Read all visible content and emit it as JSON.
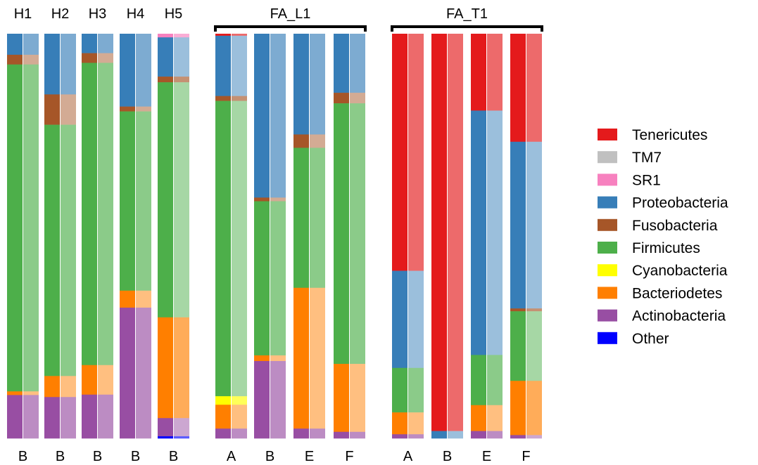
{
  "chart_data": {
    "type": "bar",
    "stacked": true,
    "normalized": true,
    "groups": [
      {
        "title": "",
        "samples": [
          {
            "top_label": "H1",
            "bottom_label": "B",
            "phyla": {
              "Proteobacteria": 5.2,
              "Fusobacteria": 2.4,
              "Firmicutes": 80.8,
              "Bacteriodetes": 0.9,
              "Actinobacteria": 10.7
            }
          },
          {
            "top_label": "H2",
            "bottom_label": "B",
            "phyla": {
              "Proteobacteria": 15.0,
              "Fusobacteria": 7.5,
              "Firmicutes": 62.1,
              "Bacteriodetes": 5.2,
              "Actinobacteria": 10.2
            }
          },
          {
            "top_label": "H3",
            "bottom_label": "B",
            "phyla": {
              "Proteobacteria": 4.8,
              "Fusobacteria": 2.4,
              "Firmicutes": 74.7,
              "Bacteriodetes": 7.3,
              "Actinobacteria": 10.8
            }
          },
          {
            "top_label": "H4",
            "bottom_label": "B",
            "phyla": {
              "Proteobacteria": 18.0,
              "Fusobacteria": 1.2,
              "Firmicutes": 44.3,
              "Bacteriodetes": 4.2,
              "Actinobacteria": 32.3
            }
          },
          {
            "top_label": "H5",
            "bottom_label": "B",
            "phyla": {
              "SR1": 0.9,
              "Proteobacteria": 9.7,
              "Fusobacteria": 1.4,
              "Firmicutes": 58.1,
              "Bacteriodetes": 24.9,
              "Actinobacteria": 4.5,
              "Other": 0.5
            }
          }
        ]
      },
      {
        "title": "FA_L1",
        "samples": [
          {
            "top_label": "",
            "bottom_label": "A",
            "phyla": {
              "Tenericutes": 0.5,
              "Proteobacteria": 14.9,
              "Fusobacteria": 1.2,
              "Firmicutes": 73.0,
              "Cyanobacteria": 2.1,
              "Bacteriodetes": 5.9,
              "Actinobacteria": 2.4
            }
          },
          {
            "top_label": "",
            "bottom_label": "B",
            "phyla": {
              "Proteobacteria": 40.5,
              "Fusobacteria": 0.9,
              "Firmicutes": 38.1,
              "Bacteriodetes": 1.4,
              "Actinobacteria": 19.1
            }
          },
          {
            "top_label": "",
            "bottom_label": "E",
            "phyla": {
              "Proteobacteria": 24.9,
              "Fusobacteria": 3.3,
              "Firmicutes": 34.6,
              "Bacteriodetes": 34.8,
              "Actinobacteria": 2.4
            }
          },
          {
            "top_label": "",
            "bottom_label": "F",
            "phyla": {
              "Proteobacteria": 14.6,
              "Fusobacteria": 2.6,
              "Firmicutes": 64.4,
              "Bacteriodetes": 16.8,
              "Actinobacteria": 1.6
            }
          }
        ]
      },
      {
        "title": "FA_T1",
        "samples": [
          {
            "top_label": "",
            "bottom_label": "A",
            "phyla": {
              "Tenericutes": 58.6,
              "Proteobacteria": 24.0,
              "Firmicutes": 11.0,
              "Bacteriodetes": 5.4,
              "Actinobacteria": 1.0
            }
          },
          {
            "top_label": "",
            "bottom_label": "B",
            "phyla": {
              "Tenericutes": 98.2,
              "Proteobacteria": 1.8
            }
          },
          {
            "top_label": "",
            "bottom_label": "E",
            "phyla": {
              "Tenericutes": 19.0,
              "Proteobacteria": 60.4,
              "Firmicutes": 12.4,
              "Bacteriodetes": 6.4,
              "Actinobacteria": 1.8
            }
          },
          {
            "top_label": "",
            "bottom_label": "F",
            "phyla": {
              "Tenericutes": 26.7,
              "Proteobacteria": 41.2,
              "Fusobacteria": 0.7,
              "Firmicutes": 17.2,
              "Bacteriodetes": 13.4,
              "Actinobacteria": 0.8
            }
          }
        ]
      }
    ],
    "legend": [
      {
        "name": "Tenericutes",
        "color": "#E41A1C"
      },
      {
        "name": "TM7",
        "color": "#C0C0C0"
      },
      {
        "name": "SR1",
        "color": "#F781BF"
      },
      {
        "name": "Proteobacteria",
        "color": "#377EB8"
      },
      {
        "name": "Fusobacteria",
        "color": "#A65628"
      },
      {
        "name": "Firmicutes",
        "color": "#4DAF4A"
      },
      {
        "name": "Cyanobacteria",
        "color": "#FFFF00"
      },
      {
        "name": "Bacteriodetes",
        "color": "#FF7F00"
      },
      {
        "name": "Actinobacteria",
        "color": "#984EA3"
      },
      {
        "name": "Other",
        "color": "#0000FF"
      }
    ],
    "legend_position": "right",
    "grid": false
  }
}
